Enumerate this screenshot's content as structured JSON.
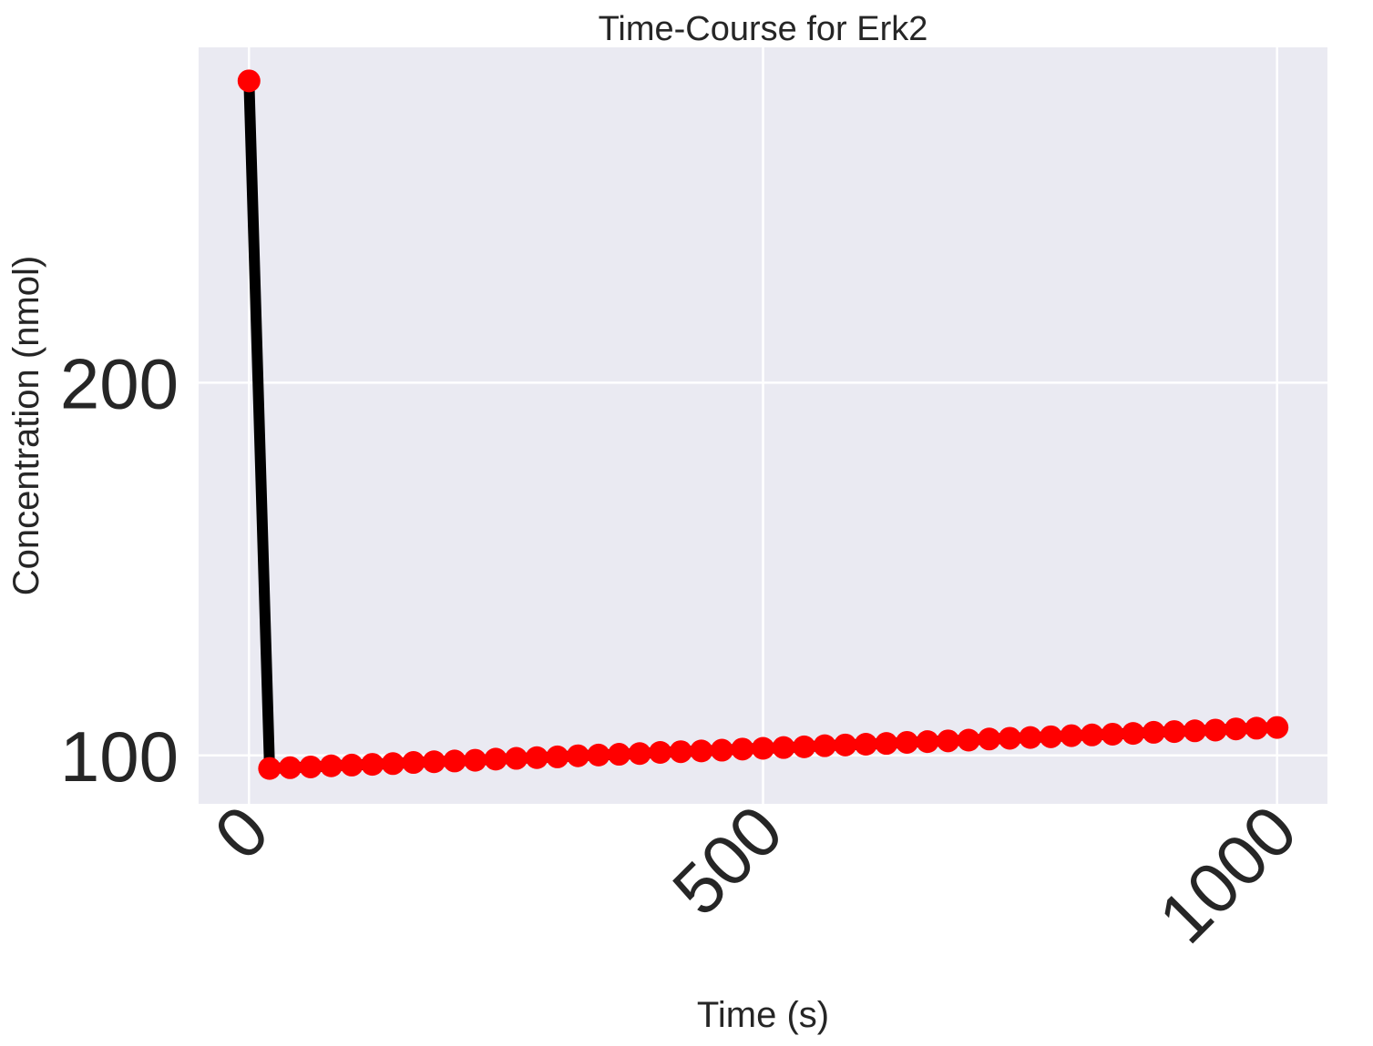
{
  "chart_data": {
    "type": "line",
    "title": "Time-Course for Erk2",
    "xlabel": "Time (s)",
    "ylabel": "Concentration (nmol)",
    "xlim": [
      -49,
      1049
    ],
    "ylim": [
      87,
      290
    ],
    "xticks": [
      0,
      500,
      1000
    ],
    "xtick_labels": [
      "0",
      "500",
      "1000"
    ],
    "yticks": [
      100,
      200
    ],
    "ytick_labels": [
      "100",
      "200"
    ],
    "grid": true,
    "background": "#EAEAF2",
    "line_color": "#000000",
    "marker_color": "#FF0000",
    "x": [
      0,
      20,
      40,
      60,
      80,
      100,
      120,
      140,
      160,
      180,
      200,
      220,
      240,
      260,
      280,
      300,
      320,
      340,
      360,
      380,
      400,
      420,
      440,
      460,
      480,
      500,
      520,
      540,
      560,
      580,
      600,
      620,
      640,
      660,
      680,
      700,
      720,
      740,
      760,
      780,
      800,
      820,
      840,
      860,
      880,
      900,
      920,
      940,
      960,
      980,
      1000
    ],
    "y": [
      281,
      96.5,
      96.7,
      96.9,
      97.2,
      97.4,
      97.6,
      97.8,
      98.1,
      98.3,
      98.5,
      98.7,
      99.0,
      99.2,
      99.4,
      99.6,
      99.9,
      100.1,
      100.3,
      100.5,
      100.8,
      101.0,
      101.2,
      101.4,
      101.7,
      101.9,
      102.1,
      102.3,
      102.6,
      102.8,
      103.0,
      103.2,
      103.5,
      103.7,
      103.9,
      104.1,
      104.4,
      104.6,
      104.8,
      105.0,
      105.3,
      105.5,
      105.7,
      105.9,
      106.2,
      106.4,
      106.6,
      106.8,
      107.1,
      107.3,
      107.5
    ]
  }
}
